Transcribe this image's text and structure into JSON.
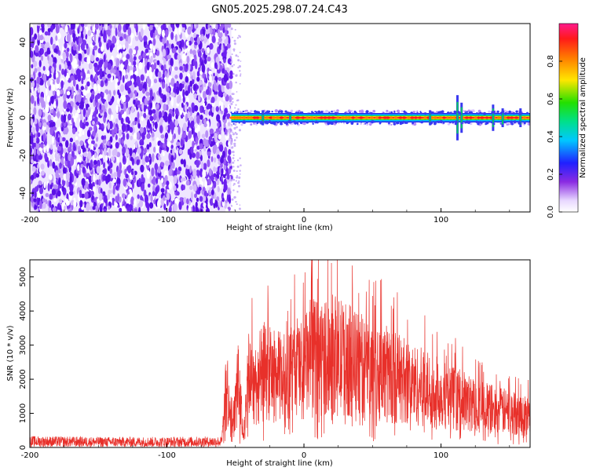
{
  "figure": {
    "title": "GN05.2025.298.07.24.C43"
  },
  "colors": {
    "snr_line": "#e8302a",
    "spectro_noise": "#6b1ff0",
    "band_core": "#ff2a2a",
    "band_mid": "#ffd600",
    "band_edge": "#1fd13a"
  },
  "chart_data": [
    {
      "type": "heatmap",
      "title": "",
      "xlabel": "Height of straight line (km)",
      "ylabel": "Frequency (Hz)",
      "xlim": [
        -200,
        165
      ],
      "ylim": [
        -50,
        50
      ],
      "xticks": [
        -200,
        -100,
        0,
        100
      ],
      "yticks": [
        -40,
        -20,
        0,
        20,
        40
      ],
      "signal_onset_km": -53,
      "signal_band_center_hz": 0,
      "signal_band_halfwidth_hz": 2.5,
      "noise_region_km": [
        -200,
        -53
      ],
      "colorbar": {
        "label": "Normalized spectral amplitude",
        "range": [
          0,
          1
        ],
        "ticks": [
          0.0,
          0.2,
          0.4,
          0.6,
          0.8
        ],
        "tick_labels": [
          "0.0",
          "0.2",
          "0.4",
          "0.6",
          "0.8"
        ],
        "colormap": "rainbow"
      }
    },
    {
      "type": "line",
      "title": "",
      "xlabel": "Height of straight line (km)",
      "ylabel": "SNR (10 * v/v)",
      "xlim": [
        -200,
        165
      ],
      "ylim": [
        0,
        5500
      ],
      "xticks": [
        -200,
        -100,
        0,
        100
      ],
      "yticks": [
        0,
        1000,
        2000,
        3000,
        4000,
        5000
      ],
      "series": [
        {
          "name": "SNR",
          "envelope_x": [
            -200,
            -150,
            -100,
            -60,
            -56,
            -52,
            -48,
            -44,
            -40,
            -35,
            -30,
            -20,
            -10,
            -5,
            0,
            5,
            10,
            20,
            30,
            40,
            60,
            80,
            100,
            120,
            140,
            165
          ],
          "envelope_y": [
            250,
            230,
            230,
            240,
            2500,
            800,
            2800,
            500,
            3200,
            2700,
            3300,
            3000,
            3100,
            3500,
            3300,
            3900,
            3800,
            4000,
            3800,
            3500,
            3200,
            2700,
            2300,
            1900,
            1600,
            1350
          ]
        }
      ]
    }
  ]
}
